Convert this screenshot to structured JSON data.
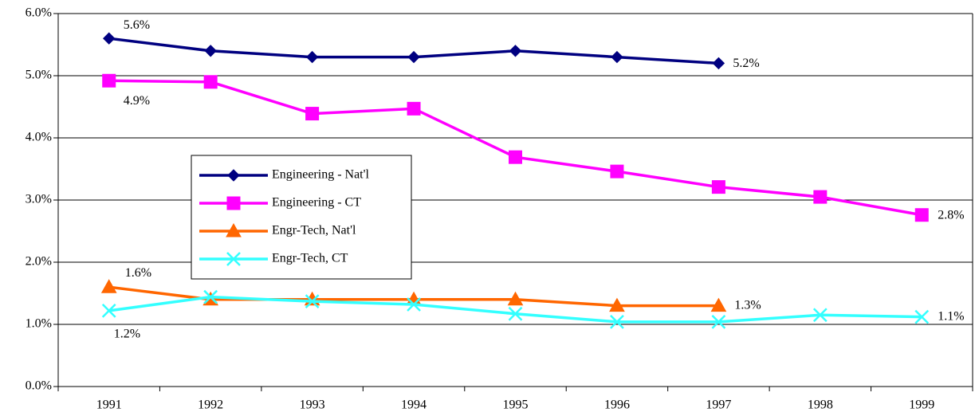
{
  "chart_data": {
    "type": "line",
    "categories": [
      "1991",
      "1992",
      "1993",
      "1994",
      "1995",
      "1996",
      "1997",
      "1998",
      "1999"
    ],
    "series": [
      {
        "name": "Engineering - Nat'l",
        "color": "#000080",
        "marker": "diamond",
        "values": [
          5.6,
          5.4,
          5.3,
          5.3,
          5.4,
          5.3,
          5.2,
          null,
          null
        ],
        "value_labels": [
          "5.6%",
          null,
          null,
          null,
          null,
          null,
          "5.2%",
          null,
          null
        ]
      },
      {
        "name": "Engineering - CT",
        "color": "#ff00ff",
        "marker": "square",
        "values": [
          4.92,
          4.9,
          4.39,
          4.47,
          3.69,
          3.46,
          3.21,
          3.05,
          2.76
        ],
        "value_labels": [
          "4.9%",
          null,
          null,
          null,
          null,
          null,
          null,
          null,
          "2.8%"
        ]
      },
      {
        "name": "Engr-Tech, Nat'l",
        "color": "#ff6600",
        "marker": "triangle",
        "values": [
          1.6,
          1.4,
          1.4,
          1.4,
          1.4,
          1.3,
          1.3,
          null,
          null
        ],
        "value_labels": [
          "1.6%",
          null,
          null,
          null,
          null,
          null,
          "1.3%",
          null,
          null
        ]
      },
      {
        "name": "Engr-Tech, CT",
        "color": "#33ffff",
        "marker": "x",
        "values": [
          1.22,
          1.44,
          1.37,
          1.32,
          1.17,
          1.04,
          1.04,
          1.15,
          1.12
        ],
        "value_labels": [
          "1.2%",
          null,
          null,
          null,
          null,
          null,
          null,
          null,
          "1.1%"
        ]
      }
    ],
    "ylim": [
      0,
      6
    ],
    "yticks": [
      {
        "value": 0,
        "label": "0.0%"
      },
      {
        "value": 1,
        "label": "1.0%"
      },
      {
        "value": 2,
        "label": "2.0%"
      },
      {
        "value": 3,
        "label": "3.0%"
      },
      {
        "value": 4,
        "label": "4.0%"
      },
      {
        "value": 5,
        "label": "5.0%"
      },
      {
        "value": 6,
        "label": "6.0%"
      }
    ],
    "grid": true
  }
}
